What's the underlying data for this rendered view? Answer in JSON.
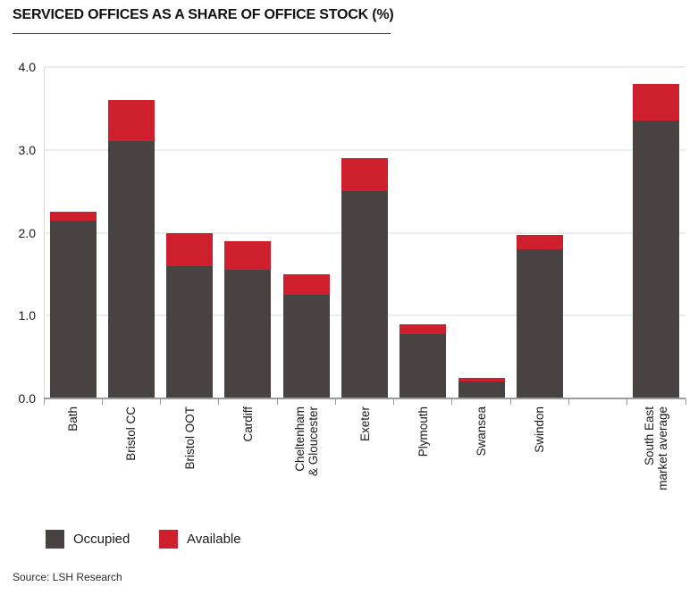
{
  "title": "SERVICED OFFICES AS A SHARE OF OFFICE STOCK (%)",
  "source": "Source: LSH Research",
  "colors": {
    "occupied": "#484242",
    "available": "#ce1f2d",
    "gridline": "#ececec",
    "axis": "#9b9b9b",
    "text": "#1a1a1a"
  },
  "chart_data": {
    "type": "bar",
    "stacked": true,
    "title": "SERVICED OFFICES AS A SHARE OF OFFICE STOCK (%)",
    "xlabel": "",
    "ylabel": "",
    "ylim": [
      0,
      4
    ],
    "yticks": [
      "0.0",
      "1.0",
      "2.0",
      "3.0",
      "4.0"
    ],
    "grid": "horizontal",
    "legend_position": "bottom",
    "categories": [
      "Bath",
      "Bristol CC",
      "Bristol OOT",
      "Cardiff",
      "Cheltenham\n& Gloucester",
      "Exeter",
      "Plymouth",
      "Swansea",
      "Swindon",
      "",
      "South East\nmarket average"
    ],
    "series": [
      {
        "name": "Occupied",
        "color": "#484242",
        "values": [
          2.15,
          3.1,
          1.6,
          1.55,
          1.25,
          2.5,
          0.78,
          0.2,
          1.8,
          null,
          3.35
        ]
      },
      {
        "name": "Available",
        "color": "#ce1f2d",
        "values": [
          0.1,
          0.5,
          0.4,
          0.35,
          0.25,
          0.4,
          0.12,
          0.05,
          0.17,
          null,
          0.45
        ]
      }
    ]
  }
}
